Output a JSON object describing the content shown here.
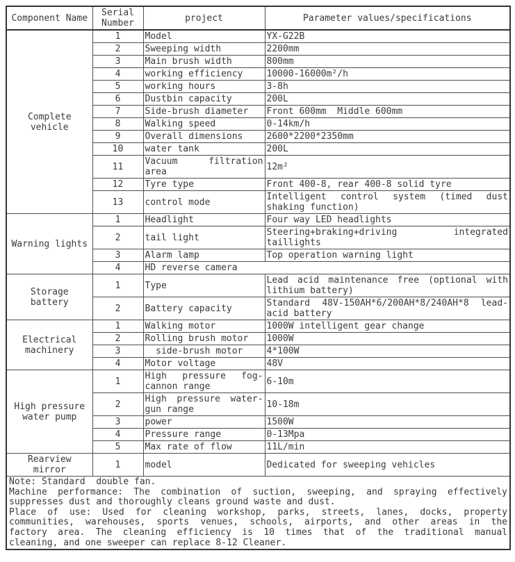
{
  "colors": {
    "text": "#3a3a3a",
    "border": "#4d4d4d",
    "border_strong": "#333333",
    "background": "#ffffff"
  },
  "header": {
    "component": "Component Name",
    "serial": "Serial Number",
    "project": "project",
    "parameters": "Parameter values/specifications"
  },
  "table": {
    "groups": [
      {
        "component": "Complete vehicle",
        "rows": [
          {
            "serial": "1",
            "project": "Model",
            "value": "YX-G22B"
          },
          {
            "serial": "2",
            "project": "Sweeping width",
            "value": "2200mm"
          },
          {
            "serial": "3",
            "project": "Main brush width",
            "value": "800mm"
          },
          {
            "serial": "4",
            "project": "working efficiency",
            "value": "10000-16000m²/h"
          },
          {
            "serial": "5",
            "project": "working hours",
            "value": "3-8h"
          },
          {
            "serial": "6",
            "project": "Dustbin capacity",
            "value": "200L"
          },
          {
            "serial": "7",
            "project": "Side-brush diameter",
            "value": "Front 600mm  Middle 600mm"
          },
          {
            "serial": "8",
            "project": "Walking speed",
            "value": "0-14km/h"
          },
          {
            "serial": "9",
            "project": "Overall dimensions",
            "value": "2600*2200*2350mm"
          },
          {
            "serial": "10",
            "project": "water tank",
            "value": "200L"
          },
          {
            "serial": "11",
            "project": "Vacuum filtration area",
            "value": "12m²"
          },
          {
            "serial": "12",
            "project": "Tyre type",
            "value": "Front 400-8, rear 400-8 solid tyre"
          },
          {
            "serial": "13",
            "project": "control mode",
            "value": "Intelligent control system (timed dust shaking function)"
          }
        ]
      },
      {
        "component": "Warning lights",
        "rows": [
          {
            "serial": "1",
            "project": "Headlight",
            "value": "Four way LED headlights"
          },
          {
            "serial": "2",
            "project": "tail light",
            "value": "Steering+braking+driving integrated taillights"
          },
          {
            "serial": "3",
            "project": "Alarm lamp",
            "value": "Top operation warning light"
          },
          {
            "serial": "4",
            "project": "HD reverse camera",
            "value": "",
            "span2": true
          }
        ]
      },
      {
        "component": "Storage battery",
        "rows": [
          {
            "serial": "1",
            "project": "Type",
            "value": "Lead acid maintenance free (optional with lithium battery)"
          },
          {
            "serial": "2",
            "project": "Battery capacity",
            "value": "Standard 48V-150AH*6/200AH*8/240AH*8 lead-acid battery"
          }
        ]
      },
      {
        "component": "Electrical machinery",
        "rows": [
          {
            "serial": "1",
            "project": "Walking motor",
            "value": "1000W intelligent gear change"
          },
          {
            "serial": "2",
            "project": "Rolling brush motor",
            "value": "1000W"
          },
          {
            "serial": "3",
            "project": "  side-brush motor",
            "value": "4*100W"
          },
          {
            "serial": "4",
            "project": "Motor voltage",
            "value": "48V"
          }
        ]
      },
      {
        "component": "High pressure water pump",
        "rows": [
          {
            "serial": "1",
            "project": "High pressure fog-cannon range",
            "value": "6-10m"
          },
          {
            "serial": "2",
            "project": "High pressure water-gun range",
            "value": "10-18m"
          },
          {
            "serial": "3",
            "project": "power",
            "value": "1500W"
          },
          {
            "serial": "4",
            "project": "Pressure range",
            "value": "0-13Mpa"
          },
          {
            "serial": "5",
            "project": "Max rate of flow",
            "value": "11L/min"
          }
        ]
      },
      {
        "component": "Rearview mirror",
        "rows": [
          {
            "serial": "1",
            "project": "model",
            "value": "Dedicated for sweeping vehicles"
          }
        ]
      }
    ]
  },
  "notes": {
    "lines": [
      {
        "t": "Note: Standard  double fan.",
        "j": 0
      },
      {
        "t": "Machine performance: The combination of suction, sweeping, and spraying effectively",
        "j": 1
      },
      {
        "t": "suppresses dust and thoroughly cleans ground waste and dust.",
        "j": 0
      },
      {
        "t": "Place of use: Used for cleaning workshop, parks, streets, lanes, docks, property",
        "j": 1
      },
      {
        "t": "communities, warehouses, sports venues, schools, airports, and other areas in the",
        "j": 1
      },
      {
        "t": "factory area. The cleaning efficiency is 10 times that of the traditional manual",
        "j": 1
      },
      {
        "t": "cleaning, and one sweeper can replace 8-12 Cleaner.",
        "j": 0
      }
    ]
  }
}
